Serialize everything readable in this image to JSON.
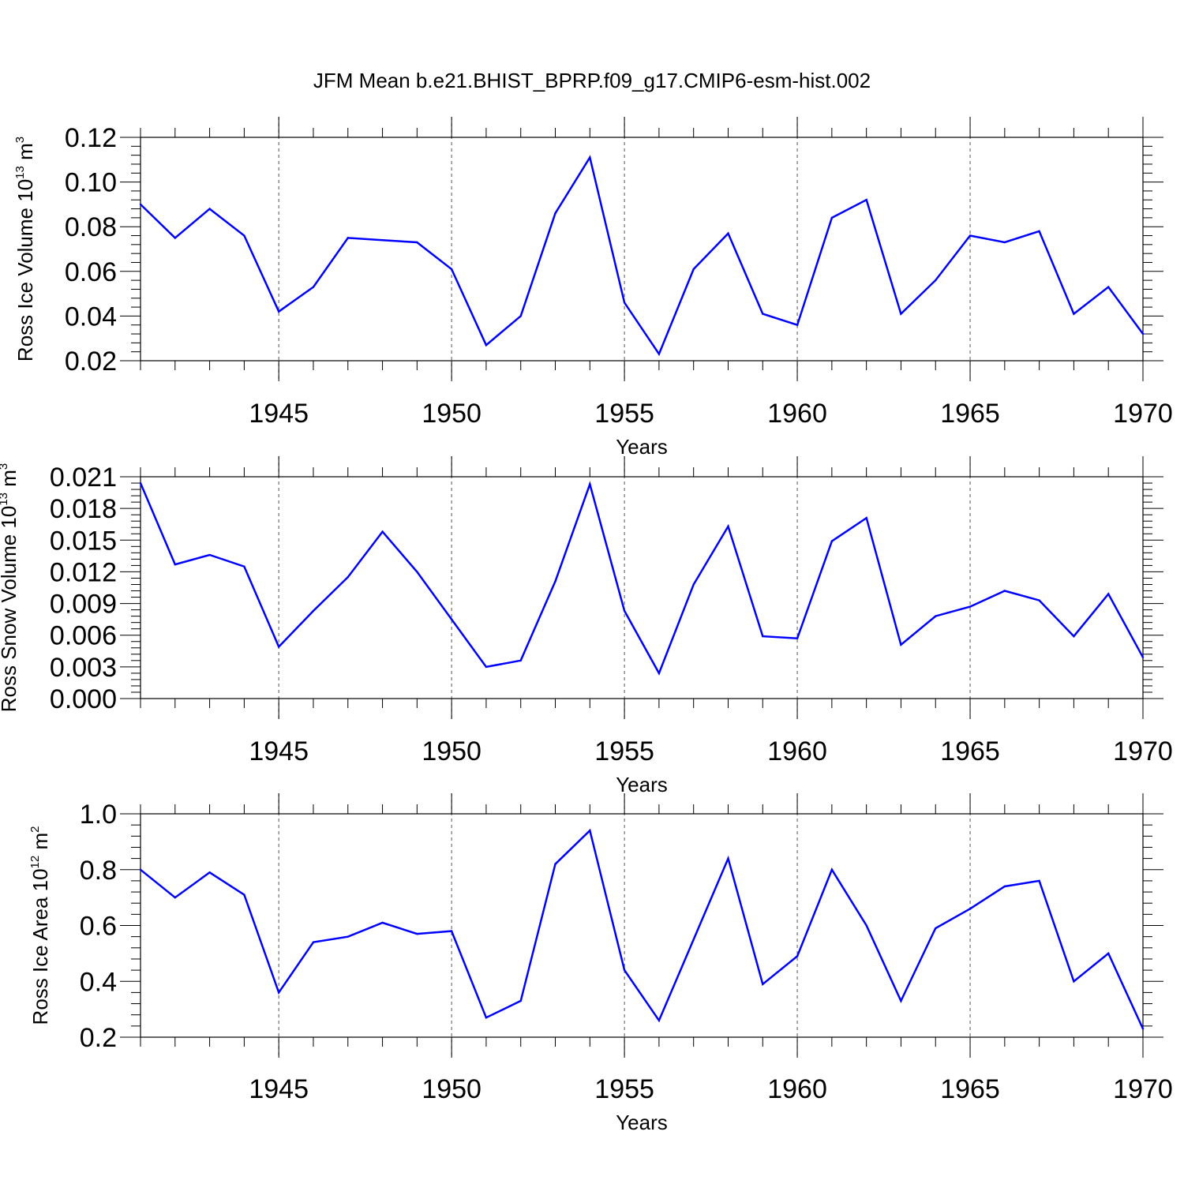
{
  "title": "JFM Mean b.e21.BHIST_BPRP.f09_g17.CMIP6-esm-hist.002",
  "colors": {
    "line": "#0000ff",
    "axis": "#000000",
    "grid": "#555555"
  },
  "chart_data": [
    {
      "type": "line",
      "id": "ice-volume",
      "ylabel_main": "Ross Ice Volume 10",
      "ylabel_exp": "13",
      "ylabel_unit": " m",
      "ylabel_unit_exp": "3",
      "xlabel": "Years",
      "xlim": [
        1941,
        1970
      ],
      "ylim": [
        0.02,
        0.12
      ],
      "yticks": [
        0.02,
        0.04,
        0.06,
        0.08,
        0.1,
        0.12
      ],
      "ytick_labels": [
        "0.02",
        "0.04",
        "0.06",
        "0.08",
        "0.10",
        "0.12"
      ],
      "xticks": [
        1945,
        1950,
        1955,
        1960,
        1965,
        1970
      ],
      "xtick_labels": [
        "1945",
        "1950",
        "1955",
        "1960",
        "1965",
        "1970"
      ],
      "x": [
        1941,
        1942,
        1943,
        1944,
        1945,
        1946,
        1947,
        1948,
        1949,
        1950,
        1951,
        1952,
        1953,
        1954,
        1955,
        1956,
        1957,
        1958,
        1959,
        1960,
        1961,
        1962,
        1963,
        1964,
        1965,
        1966,
        1967,
        1968,
        1969,
        1970
      ],
      "values": [
        0.09,
        0.075,
        0.088,
        0.076,
        0.042,
        0.053,
        0.075,
        0.074,
        0.073,
        0.061,
        0.027,
        0.04,
        0.086,
        0.111,
        0.046,
        0.023,
        0.061,
        0.077,
        0.041,
        0.036,
        0.084,
        0.092,
        0.041,
        0.056,
        0.076,
        0.073,
        0.078,
        0.041,
        0.053,
        0.032
      ]
    },
    {
      "type": "line",
      "id": "snow-volume",
      "ylabel_main": "Ross Snow Volume 10",
      "ylabel_exp": "13",
      "ylabel_unit": " m",
      "ylabel_unit_exp": "3",
      "xlabel": "Years",
      "xlim": [
        1941,
        1970
      ],
      "ylim": [
        0.0,
        0.021
      ],
      "yticks": [
        0.0,
        0.003,
        0.006,
        0.009,
        0.012,
        0.015,
        0.018,
        0.021
      ],
      "ytick_labels": [
        "0.000",
        "0.003",
        "0.006",
        "0.009",
        "0.012",
        "0.015",
        "0.018",
        "0.021"
      ],
      "xticks": [
        1945,
        1950,
        1955,
        1960,
        1965,
        1970
      ],
      "xtick_labels": [
        "1945",
        "1950",
        "1955",
        "1960",
        "1965",
        "1970"
      ],
      "x": [
        1941,
        1942,
        1943,
        1944,
        1945,
        1946,
        1947,
        1948,
        1949,
        1950,
        1951,
        1952,
        1953,
        1954,
        1955,
        1956,
        1957,
        1958,
        1959,
        1960,
        1961,
        1962,
        1963,
        1964,
        1965,
        1966,
        1967,
        1968,
        1969,
        1970
      ],
      "values": [
        0.0204,
        0.0127,
        0.0136,
        0.0125,
        0.0049,
        0.0083,
        0.0115,
        0.0158,
        0.012,
        0.0075,
        0.003,
        0.0036,
        0.0111,
        0.0203,
        0.0083,
        0.0024,
        0.0108,
        0.0163,
        0.0059,
        0.0057,
        0.0149,
        0.0171,
        0.0051,
        0.0078,
        0.0087,
        0.0102,
        0.0093,
        0.0059,
        0.0099,
        0.0039
      ]
    },
    {
      "type": "line",
      "id": "ice-area",
      "ylabel_main": "Ross Ice Area 10",
      "ylabel_exp": "12",
      "ylabel_unit": " m",
      "ylabel_unit_exp": "2",
      "xlabel": "Years",
      "xlim": [
        1941,
        1970
      ],
      "ylim": [
        0.2,
        1.0
      ],
      "yticks": [
        0.2,
        0.4,
        0.6,
        0.8,
        1.0
      ],
      "ytick_labels": [
        "0.2",
        "0.4",
        "0.6",
        "0.8",
        "1.0"
      ],
      "xticks": [
        1945,
        1950,
        1955,
        1960,
        1965,
        1970
      ],
      "xtick_labels": [
        "1945",
        "1950",
        "1955",
        "1960",
        "1965",
        "1970"
      ],
      "x": [
        1941,
        1942,
        1943,
        1944,
        1945,
        1946,
        1947,
        1948,
        1949,
        1950,
        1951,
        1952,
        1953,
        1954,
        1955,
        1956,
        1957,
        1958,
        1959,
        1960,
        1961,
        1962,
        1963,
        1964,
        1965,
        1966,
        1967,
        1968,
        1969,
        1970
      ],
      "values": [
        0.8,
        0.7,
        0.79,
        0.71,
        0.36,
        0.54,
        0.56,
        0.61,
        0.57,
        0.58,
        0.27,
        0.33,
        0.82,
        0.94,
        0.44,
        0.26,
        0.55,
        0.84,
        0.39,
        0.49,
        0.8,
        0.6,
        0.33,
        0.59,
        0.66,
        0.74,
        0.76,
        0.4,
        0.5,
        0.23
      ]
    }
  ]
}
